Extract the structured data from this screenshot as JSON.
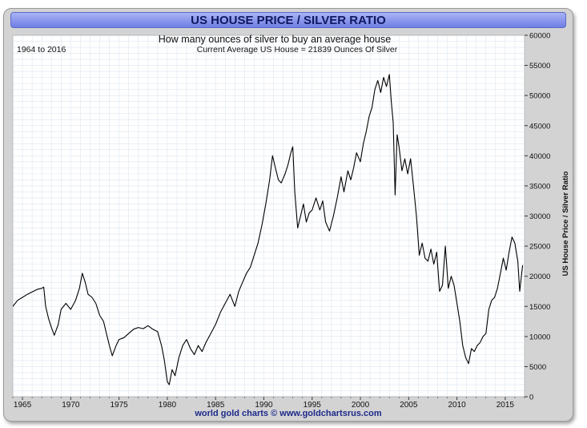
{
  "title": "US HOUSE PRICE / SILVER RATIO",
  "subtitle": "How many ounces of silver to buy an average house",
  "date_range": "1964 to 2016",
  "current_note": "Current Average US House = 21839 Ounces Of Silver",
  "footer": "world gold charts © www.goldchartsrus.com",
  "colors": {
    "line": "#000000",
    "title_bg": "#7f8ee8",
    "title_text": "#101860",
    "footer_text": "#1d2a8a",
    "grid": "#dce6f0"
  },
  "chart_data": {
    "type": "line",
    "title": "US HOUSE PRICE / SILVER RATIO",
    "subtitle": "How many ounces of silver to buy an average house",
    "xlabel": "",
    "ylabel": "US House Price / Silver Ratio",
    "xlim": [
      1964,
      2017
    ],
    "ylim": [
      0,
      60000
    ],
    "x_ticks": [
      "1965",
      "1970",
      "1975",
      "1980",
      "1985",
      "1990",
      "1995",
      "2000",
      "2005",
      "2010",
      "2015"
    ],
    "y_ticks": [
      "0",
      "5000",
      "10000",
      "15000",
      "20000",
      "25000",
      "30000",
      "35000",
      "40000",
      "45000",
      "50000",
      "55000",
      "60000"
    ],
    "grid": true,
    "series": [
      {
        "values": [
          [
            1964.0,
            15000
          ],
          [
            1964.5,
            16000
          ],
          [
            1965.0,
            16500
          ],
          [
            1965.5,
            17000
          ],
          [
            1966.0,
            17400
          ],
          [
            1966.5,
            17800
          ],
          [
            1967.0,
            18000
          ],
          [
            1967.2,
            18200
          ],
          [
            1967.4,
            15000
          ],
          [
            1967.7,
            13000
          ],
          [
            1968.0,
            11500
          ],
          [
            1968.3,
            10200
          ],
          [
            1968.7,
            12000
          ],
          [
            1969.0,
            14500
          ],
          [
            1969.5,
            15500
          ],
          [
            1970.0,
            14500
          ],
          [
            1970.5,
            16000
          ],
          [
            1970.9,
            18000
          ],
          [
            1971.2,
            20500
          ],
          [
            1971.5,
            19000
          ],
          [
            1971.8,
            17000
          ],
          [
            1972.2,
            16500
          ],
          [
            1972.6,
            15500
          ],
          [
            1973.0,
            13500
          ],
          [
            1973.4,
            12500
          ],
          [
            1973.7,
            10500
          ],
          [
            1974.0,
            8500
          ],
          [
            1974.3,
            6800
          ],
          [
            1974.7,
            8500
          ],
          [
            1975.0,
            9500
          ],
          [
            1975.5,
            9800
          ],
          [
            1976.0,
            10500
          ],
          [
            1976.5,
            11200
          ],
          [
            1977.0,
            11500
          ],
          [
            1977.5,
            11300
          ],
          [
            1978.0,
            11800
          ],
          [
            1978.5,
            11200
          ],
          [
            1979.0,
            10800
          ],
          [
            1979.4,
            8500
          ],
          [
            1979.7,
            6000
          ],
          [
            1980.0,
            2500
          ],
          [
            1980.2,
            2000
          ],
          [
            1980.5,
            4500
          ],
          [
            1980.8,
            3500
          ],
          [
            1981.2,
            6500
          ],
          [
            1981.6,
            8500
          ],
          [
            1982.0,
            9500
          ],
          [
            1982.4,
            8000
          ],
          [
            1982.8,
            7000
          ],
          [
            1983.2,
            8500
          ],
          [
            1983.6,
            7500
          ],
          [
            1984.0,
            9000
          ],
          [
            1984.5,
            10500
          ],
          [
            1985.0,
            12000
          ],
          [
            1985.5,
            14000
          ],
          [
            1986.0,
            15500
          ],
          [
            1986.5,
            17000
          ],
          [
            1987.0,
            15000
          ],
          [
            1987.4,
            17500
          ],
          [
            1987.8,
            19000
          ],
          [
            1988.2,
            20500
          ],
          [
            1988.6,
            21500
          ],
          [
            1989.0,
            23500
          ],
          [
            1989.4,
            25500
          ],
          [
            1989.8,
            28500
          ],
          [
            1990.2,
            32000
          ],
          [
            1990.6,
            36000
          ],
          [
            1990.9,
            40000
          ],
          [
            1991.2,
            38000
          ],
          [
            1991.5,
            36000
          ],
          [
            1991.8,
            35500
          ],
          [
            1992.2,
            37000
          ],
          [
            1992.5,
            38500
          ],
          [
            1992.8,
            40500
          ],
          [
            1993.0,
            41500
          ],
          [
            1993.2,
            34000
          ],
          [
            1993.5,
            28000
          ],
          [
            1993.8,
            30000
          ],
          [
            1994.1,
            32000
          ],
          [
            1994.4,
            29000
          ],
          [
            1994.7,
            30500
          ],
          [
            1995.0,
            31000
          ],
          [
            1995.4,
            33000
          ],
          [
            1995.8,
            31000
          ],
          [
            1996.1,
            32500
          ],
          [
            1996.4,
            29000
          ],
          [
            1996.8,
            27500
          ],
          [
            1997.2,
            30000
          ],
          [
            1997.6,
            33000
          ],
          [
            1998.0,
            36500
          ],
          [
            1998.3,
            34000
          ],
          [
            1998.7,
            37500
          ],
          [
            1999.0,
            36000
          ],
          [
            1999.3,
            38000
          ],
          [
            1999.6,
            40500
          ],
          [
            2000.0,
            39000
          ],
          [
            2000.3,
            42000
          ],
          [
            2000.6,
            44000
          ],
          [
            2000.9,
            46500
          ],
          [
            2001.2,
            48000
          ],
          [
            2001.5,
            51000
          ],
          [
            2001.8,
            52500
          ],
          [
            2002.1,
            50500
          ],
          [
            2002.4,
            53000
          ],
          [
            2002.7,
            51500
          ],
          [
            2003.0,
            53500
          ],
          [
            2003.2,
            49000
          ],
          [
            2003.4,
            45500
          ],
          [
            2003.6,
            33500
          ],
          [
            2003.8,
            43500
          ],
          [
            2004.0,
            41500
          ],
          [
            2004.3,
            37500
          ],
          [
            2004.6,
            39500
          ],
          [
            2004.9,
            37000
          ],
          [
            2005.2,
            39500
          ],
          [
            2005.5,
            35000
          ],
          [
            2005.8,
            30000
          ],
          [
            2006.1,
            23500
          ],
          [
            2006.4,
            25500
          ],
          [
            2006.7,
            23000
          ],
          [
            2007.0,
            22500
          ],
          [
            2007.3,
            24500
          ],
          [
            2007.6,
            22000
          ],
          [
            2007.9,
            24000
          ],
          [
            2008.2,
            17500
          ],
          [
            2008.5,
            18500
          ],
          [
            2008.8,
            25000
          ],
          [
            2009.1,
            18000
          ],
          [
            2009.4,
            20000
          ],
          [
            2009.7,
            18500
          ],
          [
            2010.0,
            15500
          ],
          [
            2010.3,
            12500
          ],
          [
            2010.6,
            8500
          ],
          [
            2010.9,
            6500
          ],
          [
            2011.2,
            5500
          ],
          [
            2011.5,
            8000
          ],
          [
            2011.8,
            7500
          ],
          [
            2012.1,
            8500
          ],
          [
            2012.4,
            9000
          ],
          [
            2012.7,
            10000
          ],
          [
            2013.0,
            10500
          ],
          [
            2013.3,
            14500
          ],
          [
            2013.6,
            16000
          ],
          [
            2013.9,
            16500
          ],
          [
            2014.2,
            18000
          ],
          [
            2014.5,
            20500
          ],
          [
            2014.8,
            23000
          ],
          [
            2015.1,
            21000
          ],
          [
            2015.4,
            24000
          ],
          [
            2015.7,
            26500
          ],
          [
            2016.0,
            25500
          ],
          [
            2016.3,
            22500
          ],
          [
            2016.5,
            17500
          ],
          [
            2016.8,
            21839
          ]
        ]
      }
    ]
  }
}
